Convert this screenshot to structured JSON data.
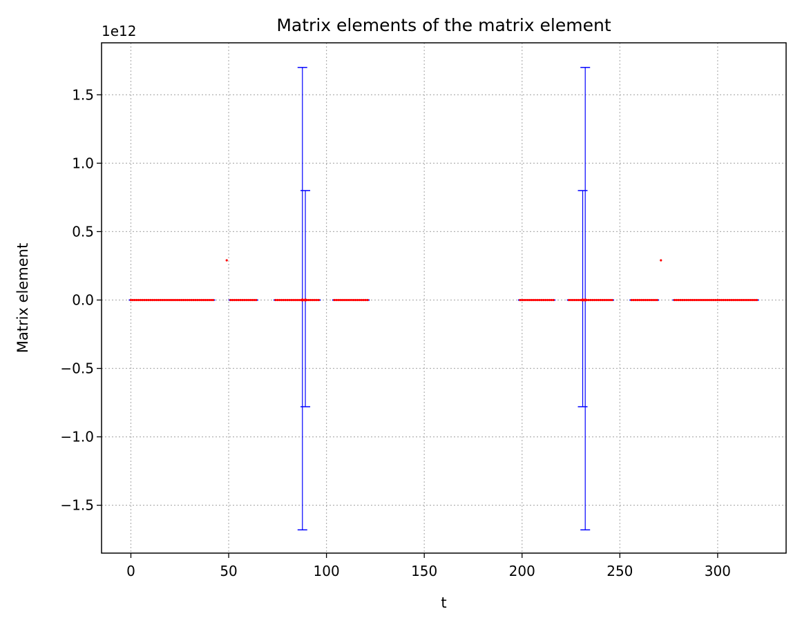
{
  "chart_data": {
    "type": "scatter",
    "title": "Matrix elements of the matrix element",
    "xlabel": "t",
    "ylabel": "Matrix element",
    "y_offset_text": "1e12",
    "xlim": [
      -15,
      335
    ],
    "ylim": [
      -1.85,
      1.88
    ],
    "y_units_multiplier": 1000000000000,
    "xticks": [
      0,
      50,
      100,
      150,
      200,
      250,
      300
    ],
    "yticks": [
      -1.5,
      -1.0,
      -0.5,
      0.0,
      0.5,
      1.0,
      1.5
    ],
    "ytick_labels": [
      "−1.5",
      "−1.0",
      "−0.5",
      "0.0",
      "0.5",
      "1.0",
      "1.5"
    ],
    "grid": true,
    "marker_color": "#ff0000",
    "errorbar_color": "#0000ff",
    "points_zero_segments": [
      {
        "x_start": 0,
        "x_end": 42
      },
      {
        "x_start": 51,
        "x_end": 64
      },
      {
        "x_start": 74,
        "x_end": 96
      },
      {
        "x_start": 104,
        "x_end": 121
      },
      {
        "x_start": 199,
        "x_end": 216
      },
      {
        "x_start": 224,
        "x_end": 246
      },
      {
        "x_start": 256,
        "x_end": 269
      },
      {
        "x_start": 278,
        "x_end": 320
      }
    ],
    "outlier_points": [
      {
        "x": 49,
        "y": 0.29
      },
      {
        "x": 271,
        "y": 0.29
      }
    ],
    "large_errorbars": [
      {
        "x": 87.7,
        "y": 0.0,
        "ylow": -1.68,
        "yhigh": 1.7
      },
      {
        "x": 89.2,
        "y": 0.0,
        "ylow": -0.78,
        "yhigh": 0.8
      },
      {
        "x": 231.0,
        "y": 0.0,
        "ylow": -0.78,
        "yhigh": 0.8
      },
      {
        "x": 232.3,
        "y": 0.0,
        "ylow": -1.68,
        "yhigh": 1.7
      }
    ]
  }
}
